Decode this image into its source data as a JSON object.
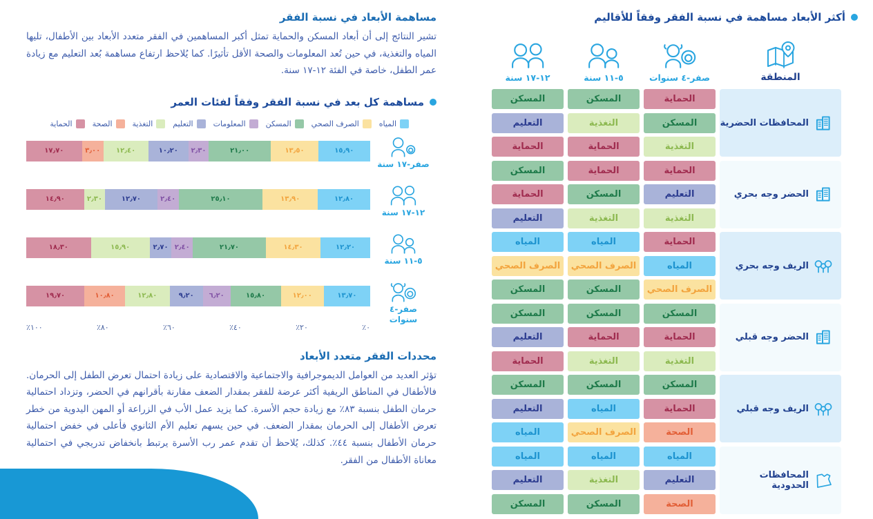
{
  "palette": {
    "accent": "#29a5e0",
    "title_navy": "#1d4b9c",
    "heading_blue": "#1a6cb3",
    "body_text": "#3e5cab",
    "axis_text": "#46609f",
    "region_name": "#21418f",
    "band_blue": "#dceefa",
    "band_alt": "#f3fafd",
    "corner_shape": "#1898d5"
  },
  "dimensions": {
    "water": {
      "label": "المياه",
      "bg": "#7ed2f6",
      "fg": "#1d93cf"
    },
    "sanitation": {
      "label": "الصرف الصحي",
      "bg": "#fbe2a0",
      "fg": "#f2a43e"
    },
    "housing": {
      "label": "المسكن",
      "bg": "#95c8a7",
      "fg": "#1e7a4a"
    },
    "information": {
      "label": "المعلومات",
      "bg": "#c3acd4",
      "fg": "#8152a5"
    },
    "education": {
      "label": "التعليم",
      "bg": "#a9b3d9",
      "fg": "#2c3c90"
    },
    "nutrition": {
      "label": "التغذية",
      "bg": "#daecbd",
      "fg": "#8db951"
    },
    "health": {
      "label": "الصحة",
      "bg": "#f5b19b",
      "fg": "#e25e36"
    },
    "protection": {
      "label": "الحماية",
      "bg": "#d692a4",
      "fg": "#a02c4f"
    }
  },
  "right_panel": {
    "title": "أكثر الأبعاد مساهمة في نسبة الفقر وفقاً للأقاليم",
    "columns": [
      {
        "label": "المنطقة",
        "icon": "map-pin"
      },
      {
        "label": "صفر-٤ سنوات",
        "icon": "girl-baby"
      },
      {
        "label": "٥-١١ سنة",
        "icon": "kids"
      },
      {
        "label": "١٢-١٧ سنة",
        "icon": "teens"
      }
    ],
    "regions": [
      {
        "name": "المحافظات الحضرية",
        "icon": "buildings",
        "rows": [
          [
            "protection",
            "housing",
            "housing"
          ],
          [
            "housing",
            "nutrition",
            "education"
          ],
          [
            "nutrition",
            "protection",
            "protection"
          ]
        ]
      },
      {
        "name": "الحضر وجه بحري",
        "icon": "buildings",
        "rows": [
          [
            "protection",
            "protection",
            "housing"
          ],
          [
            "education",
            "housing",
            "protection"
          ],
          [
            "nutrition",
            "nutrition",
            "education"
          ]
        ]
      },
      {
        "name": "الريف وجه بحري",
        "icon": "trees",
        "rows": [
          [
            "protection",
            "water",
            "water"
          ],
          [
            "water",
            "sanitation",
            "sanitation"
          ],
          [
            "sanitation",
            "housing",
            "housing"
          ]
        ]
      },
      {
        "name": "الحضر وجه قبلي",
        "icon": "buildings",
        "rows": [
          [
            "housing",
            "housing",
            "housing"
          ],
          [
            "protection",
            "protection",
            "education"
          ],
          [
            "nutrition",
            "nutrition",
            "protection"
          ]
        ]
      },
      {
        "name": "الريف وجه قبلي",
        "icon": "trees",
        "rows": [
          [
            "housing",
            "housing",
            "housing"
          ],
          [
            "protection",
            "water",
            "education"
          ],
          [
            "health",
            "sanitation",
            "water"
          ]
        ]
      },
      {
        "name": "المحافظات الحدودية",
        "icon": "egypt-map",
        "rows": [
          [
            "water",
            "water",
            "water"
          ],
          [
            "education",
            "nutrition",
            "education"
          ],
          [
            "health",
            "housing",
            "housing"
          ]
        ]
      }
    ]
  },
  "sections": {
    "s1_heading": "مساهمة الأبعاد في نسبة الفقر",
    "s1_body": "تشير النتائج إلى أن أبعاد المسكن والحماية تمثل أكبر المساهمين في الفقر متعدد الأبعاد بين الأطفال، تليها المياه والتغذية، في حين تُعد المعلومات والصحة الأقل تأثيرًا. كما يُلاحظ ارتفاع مساهمة بُعد التعليم مع زيادة عمر الطفل، خاصة في الفئة ١٢-١٧ سنة.",
    "s2_heading": "محددات الفقر متعدد الأبعاد",
    "s2_body": "تؤثر العديد من العوامل الديموجرافية والاجتماعية والاقتصادية على زيادة احتمال تعرض الطفل إلى الحرمان. فالأطفال في المناطق الريفية أكثر عرضة للفقر بمقدار الضعف مقارنة بأقرانهم في الحضر، وتزداد احتمالية حرمان الطفل بنسبة ٨٣٪ مع زيادة حجم الأسرة. كما يزيد عمل الأب في الزراعة أو المهن اليدوية من خطر تعرض الأطفال إلى الحرمان بمقدار الضعف. في حين يسهم تعليم الأم الثانوي فأعلى في خفض احتمالية حرمان الأطفال بنسبة ٤٤٪. كذلك، يُلاحظ أن تقدم عمر رب الأسرة يرتبط بانخفاض تدريجي في احتمالية معاناة الأطفال من الفقر."
  },
  "chart_data": {
    "type": "bar",
    "variant": "horizontal-stacked-percent",
    "title": "مساهمة كل بعد في نسبة الفقر وفقاً لفئات العمر",
    "legend_order": [
      "water",
      "sanitation",
      "housing",
      "information",
      "education",
      "nutrition",
      "health",
      "protection"
    ],
    "x_ticks": [
      "٠٪",
      "٢٠٪",
      "٤٠٪",
      "٦٠٪",
      "٨٠٪",
      "١٠٠٪"
    ],
    "xlim": [
      0,
      100
    ],
    "bars": [
      {
        "label": "صفر-١٧ سنة",
        "icon": "boy-baby",
        "segments": [
          {
            "dim": "water",
            "value": 15.9,
            "display": "١٥٫٩٠"
          },
          {
            "dim": "sanitation",
            "value": 13.5,
            "display": "١٣٫٥٠"
          },
          {
            "dim": "housing",
            "value": 21.0,
            "display": "٢١٫٠٠"
          },
          {
            "dim": "information",
            "value": 2.3,
            "display": "٢٫٣٠"
          },
          {
            "dim": "education",
            "value": 10.2,
            "display": "١٠٫٢٠"
          },
          {
            "dim": "nutrition",
            "value": 12.4,
            "display": "١٢٫٤٠"
          },
          {
            "dim": "health",
            "value": 3.0,
            "display": "٣٫٠٠"
          },
          {
            "dim": "protection",
            "value": 17.7,
            "display": "١٧٫٧٠"
          }
        ]
      },
      {
        "label": "١٢-١٧ سنة",
        "icon": "teens",
        "segments": [
          {
            "dim": "water",
            "value": 12.8,
            "display": "١٢٫٨٠"
          },
          {
            "dim": "sanitation",
            "value": 13.9,
            "display": "١٣٫٩٠"
          },
          {
            "dim": "housing",
            "value": 25.1,
            "display": "٢٥٫١٠"
          },
          {
            "dim": "information",
            "value": 2.4,
            "display": "٢٫٤٠"
          },
          {
            "dim": "education",
            "value": 12.7,
            "display": "١٢٫٧٠"
          },
          {
            "dim": "nutrition",
            "value": 2.3,
            "display": "٢٫٣٠"
          },
          {
            "dim": "protection",
            "value": 14.9,
            "display": "١٤٫٩٠"
          }
        ]
      },
      {
        "label": "٥-١١ سنة",
        "icon": "kids",
        "segments": [
          {
            "dim": "water",
            "value": 12.2,
            "display": "١٢٫٢٠"
          },
          {
            "dim": "sanitation",
            "value": 14.3,
            "display": "١٤٫٣٠"
          },
          {
            "dim": "housing",
            "value": 21.7,
            "display": "٢١٫٧٠"
          },
          {
            "dim": "information",
            "value": 2.4,
            "display": "٢٫٤٠"
          },
          {
            "dim": "education",
            "value": 2.7,
            "display": "٢٫٧٠"
          },
          {
            "dim": "nutrition",
            "value": 15.9,
            "display": "١٥٫٩٠"
          },
          {
            "dim": "protection",
            "value": 18.3,
            "display": "١٨٫٣٠"
          }
        ]
      },
      {
        "label": "صفر-٤ سنوات",
        "icon": "girl-baby",
        "segments": [
          {
            "dim": "water",
            "value": 13.7,
            "display": "١٣٫٧٠"
          },
          {
            "dim": "sanitation",
            "value": 12.0,
            "display": "١٢٫٠٠"
          },
          {
            "dim": "housing",
            "value": 15.8,
            "display": "١٥٫٨٠"
          },
          {
            "dim": "information",
            "value": 6.2,
            "display": "٦٫٢٠"
          },
          {
            "dim": "education",
            "value": 9.2,
            "display": "٩٫٢٠"
          },
          {
            "dim": "nutrition",
            "value": 12.8,
            "display": "١٢٫٨٠"
          },
          {
            "dim": "health",
            "value": 10.8,
            "display": "١٠٫٨٠"
          },
          {
            "dim": "protection",
            "value": 19.7,
            "display": "١٩٫٧٠"
          }
        ]
      }
    ]
  }
}
